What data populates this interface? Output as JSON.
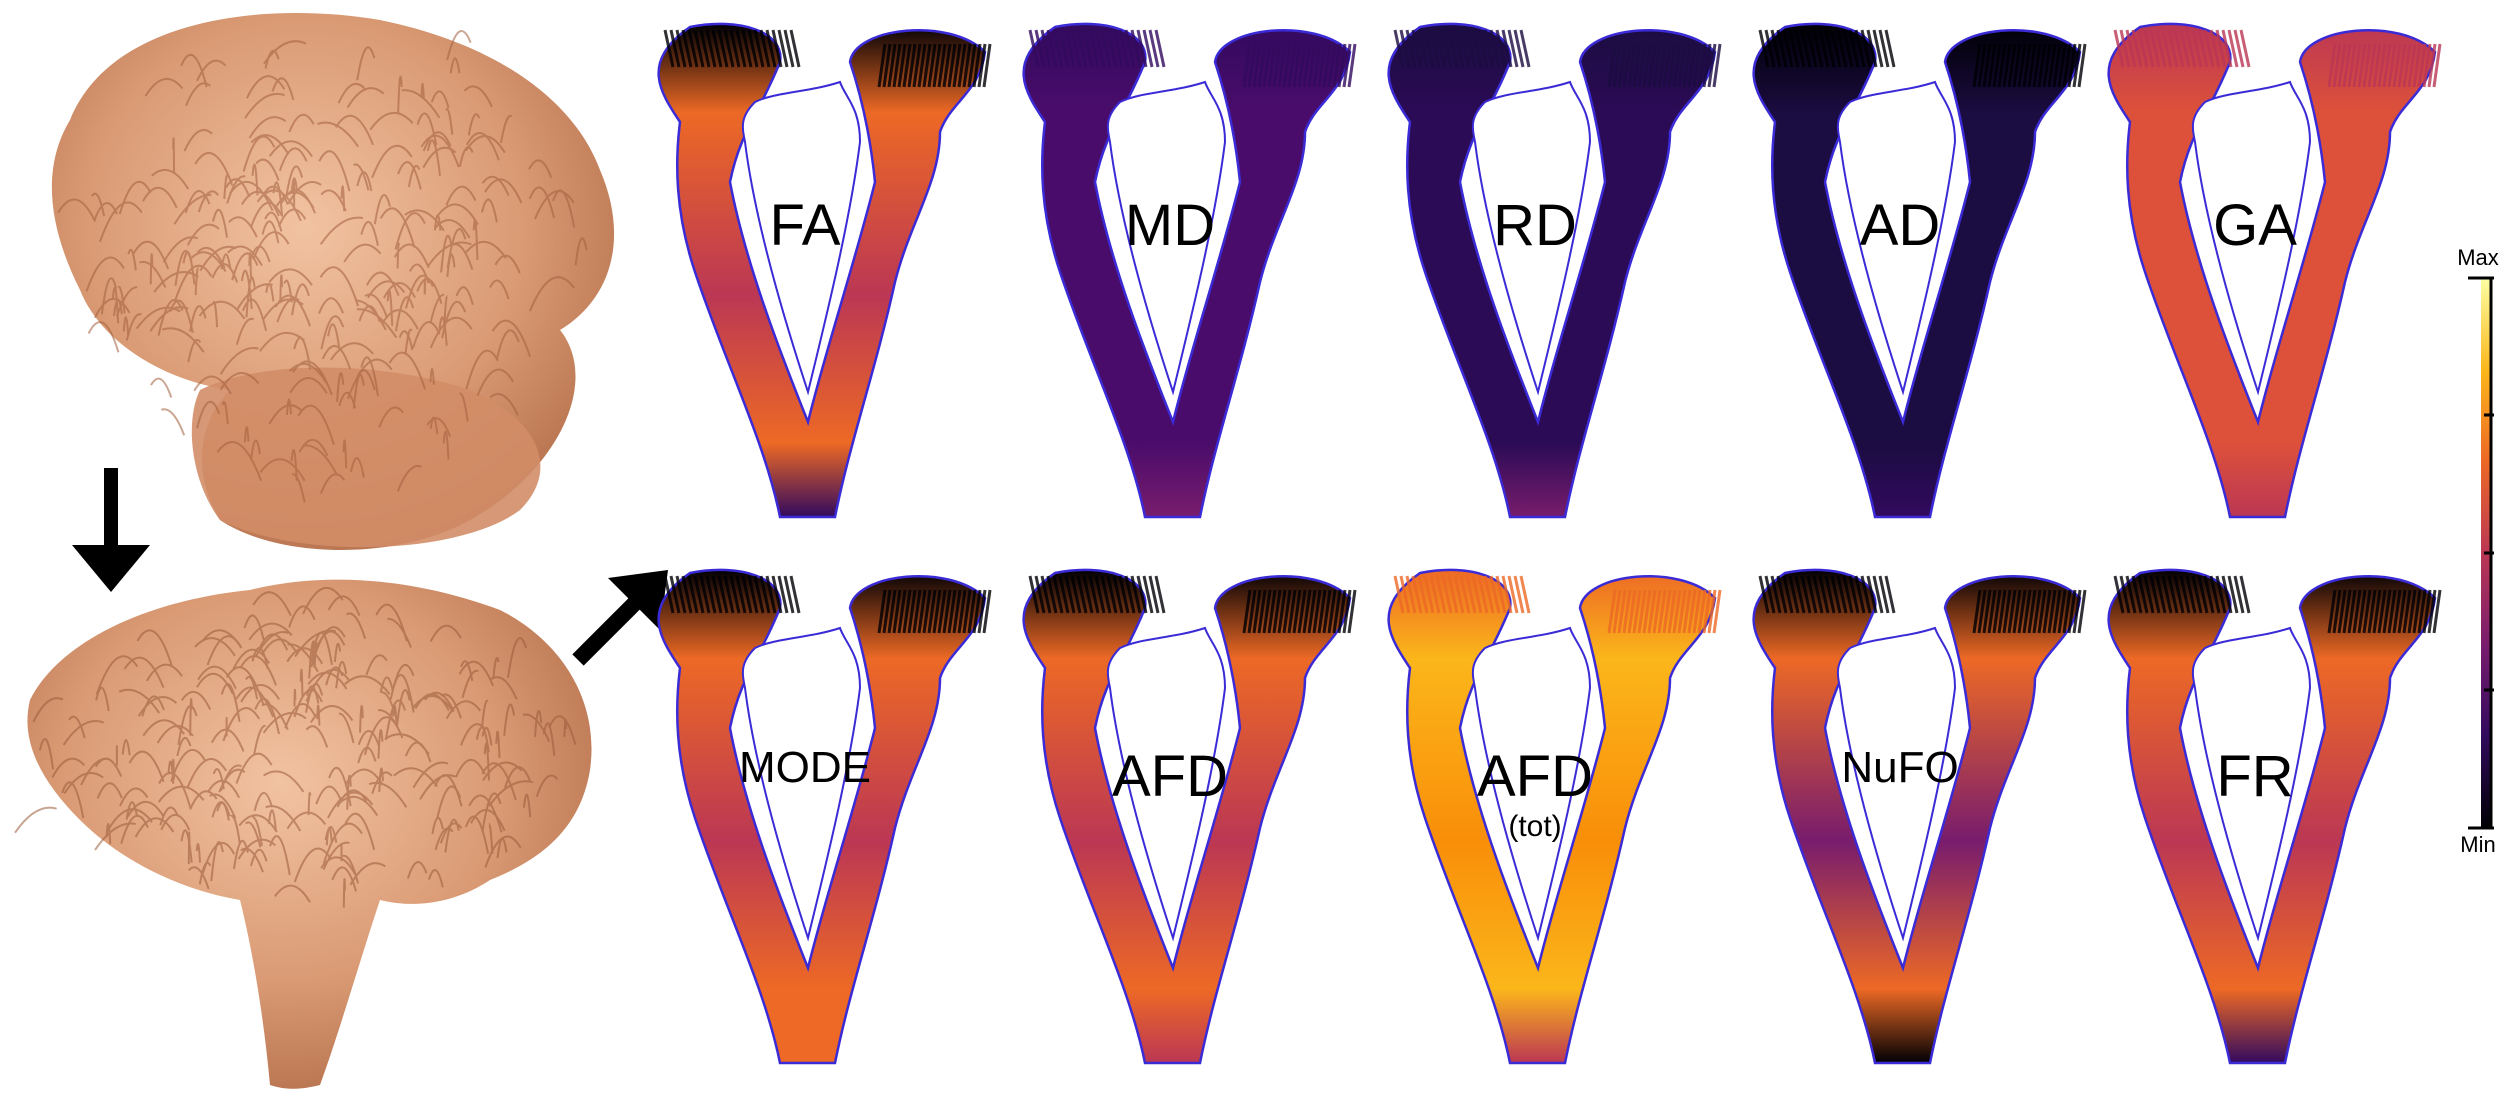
{
  "panels": [
    {
      "label": "FA",
      "scheme": "fa"
    },
    {
      "label": "MD",
      "scheme": "md"
    },
    {
      "label": "RD",
      "scheme": "rd"
    },
    {
      "label": "AD",
      "scheme": "ad"
    },
    {
      "label": "GA",
      "scheme": "ga"
    },
    {
      "label": "MODE",
      "scheme": "mode"
    },
    {
      "label": "AFD",
      "scheme": "afd"
    },
    {
      "label": "AFD",
      "sublabel": "(tot)",
      "scheme": "afdtot"
    },
    {
      "label": "NuFO",
      "scheme": "nufo"
    },
    {
      "label": "FR",
      "scheme": "fr"
    }
  ],
  "colorbar": {
    "max_label": "Max",
    "min_label": "Min"
  },
  "colors": {
    "fiber": "#d99a74",
    "fiber_dark": "#9b5a3a",
    "outline": "#3b2bd6",
    "cmap": [
      "#000004",
      "#320a5e",
      "#781c6d",
      "#bb3754",
      "#ed6925",
      "#fbb61a",
      "#fcffa4"
    ]
  },
  "icons": [
    "down-arrow-icon",
    "up-right-arrow-icon"
  ]
}
